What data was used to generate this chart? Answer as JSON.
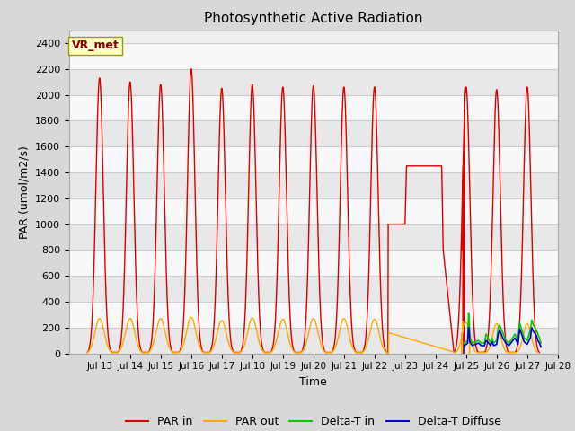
{
  "title": "Photosynthetic Active Radiation",
  "xlabel": "Time",
  "ylabel": "PAR (umol/m2/s)",
  "ylim": [
    0,
    2500
  ],
  "xlim": [
    12.0,
    28.0
  ],
  "xtick_positions": [
    13,
    14,
    15,
    16,
    17,
    18,
    19,
    20,
    21,
    22,
    23,
    24,
    25,
    26,
    27,
    28
  ],
  "xtick_labels": [
    "Jul 13",
    "Jul 14",
    "Jul 15",
    "Jul 16",
    "Jul 17",
    "Jul 18",
    "Jul 19",
    "Jul 20",
    "Jul 21",
    "Jul 22",
    "Jul 23",
    "Jul 24",
    "Jul 25",
    "Jul 26",
    "Jul 27",
    "Jul 28"
  ],
  "ytick_positions": [
    0,
    200,
    400,
    600,
    800,
    1000,
    1200,
    1400,
    1600,
    1800,
    2000,
    2200,
    2400
  ],
  "grid_color": "#d8d8d8",
  "background_color": "#d8d8d8",
  "plot_bg_color": "#efefef",
  "annotation_text": "VR_met",
  "annotation_box_color": "#ffffcc",
  "annotation_border_color": "#999900",
  "annotation_text_color": "#880000",
  "colors": {
    "PAR_in": "#dd0000",
    "PAR_out": "#ffaa00",
    "Delta_T_in": "#00cc00",
    "Delta_T_Diffuse": "#0000cc"
  },
  "legend_labels": [
    "PAR in",
    "PAR out",
    "Delta-T in",
    "Delta-T Diffuse"
  ]
}
